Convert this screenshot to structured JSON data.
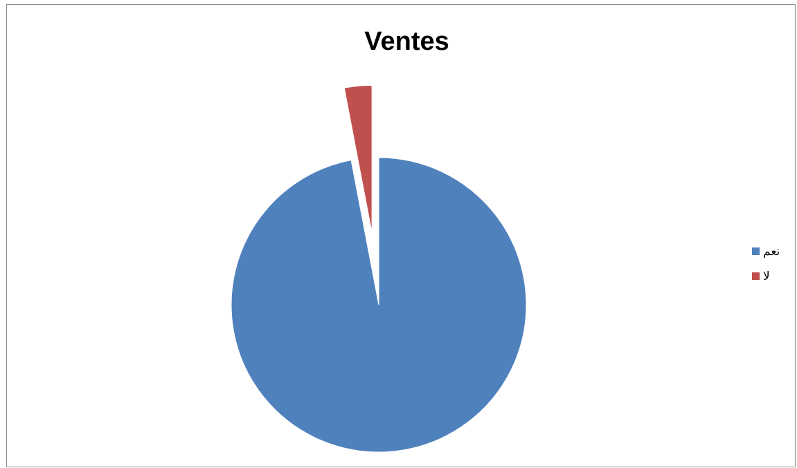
{
  "chart_data": {
    "type": "pie",
    "title": "Ventes",
    "categories": [
      "نعم",
      "لا"
    ],
    "values": [
      97,
      3
    ],
    "colors": [
      "#4f81bd",
      "#c0504d"
    ],
    "exploded": [
      false,
      true
    ],
    "legend_position": "right"
  },
  "legend": {
    "items": [
      {
        "label": "نعم",
        "color": "#4f81bd"
      },
      {
        "label": "لا",
        "color": "#c0504d"
      }
    ]
  }
}
